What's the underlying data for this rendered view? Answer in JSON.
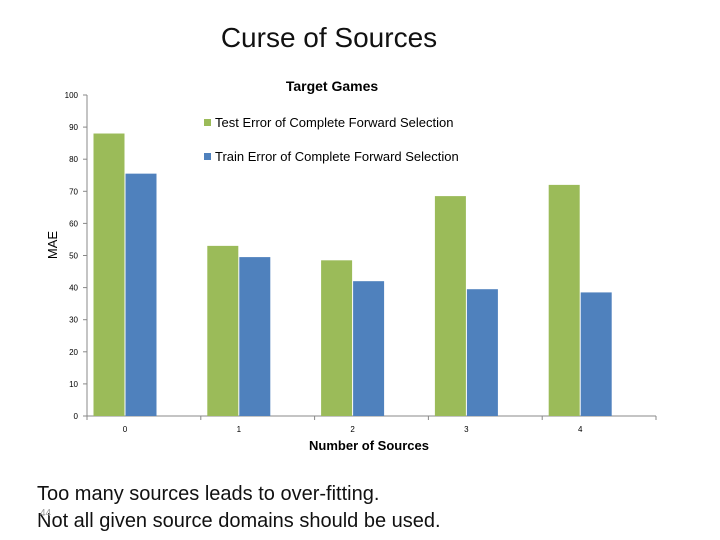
{
  "slide": {
    "title": "Curse of Sources",
    "caption_lines": [
      "Too many sources leads to over-fitting.",
      "Not all given source domains should be used."
    ],
    "slide_number": "44"
  },
  "chart_data": {
    "type": "bar",
    "title": "Target Games",
    "xlabel": "Number of Sources",
    "ylabel": "MAE",
    "categories": [
      "0",
      "1",
      "2",
      "3",
      "4"
    ],
    "ylim": [
      0,
      100
    ],
    "yticks": [
      0,
      10,
      20,
      30,
      40,
      50,
      60,
      70,
      80,
      90,
      100
    ],
    "grid": false,
    "legend_position": "top-right",
    "series": [
      {
        "name": "Test Error of Complete Forward Selection",
        "color": "#9BBB59",
        "values": [
          88,
          53,
          48.5,
          68.5,
          72
        ]
      },
      {
        "name": "Train Error of Complete Forward Selection",
        "color": "#4F81BD",
        "values": [
          75.5,
          49.5,
          42,
          39.5,
          38.5
        ]
      }
    ]
  }
}
